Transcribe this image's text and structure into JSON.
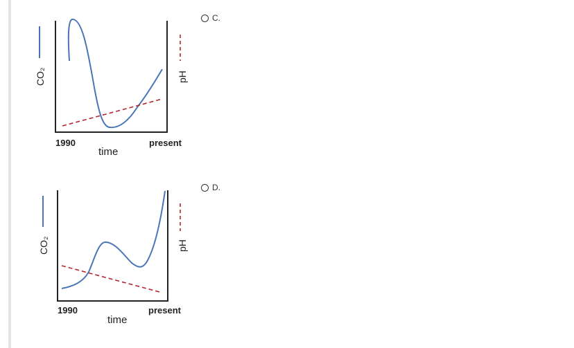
{
  "options": [
    {
      "label": "C."
    },
    {
      "label": "D."
    }
  ],
  "charts": [
    {
      "x_start": "1990",
      "x_end": "present",
      "xlabel": "time",
      "left_axis": "CO₂",
      "right_axis": "pH"
    },
    {
      "x_start": "1990",
      "x_end": "present",
      "xlabel": "time",
      "left_axis": "CO₂",
      "right_axis": "pH"
    }
  ],
  "colors": {
    "co2": "#4a74b8",
    "ph": "#b3262b",
    "axis": "#222222"
  }
}
